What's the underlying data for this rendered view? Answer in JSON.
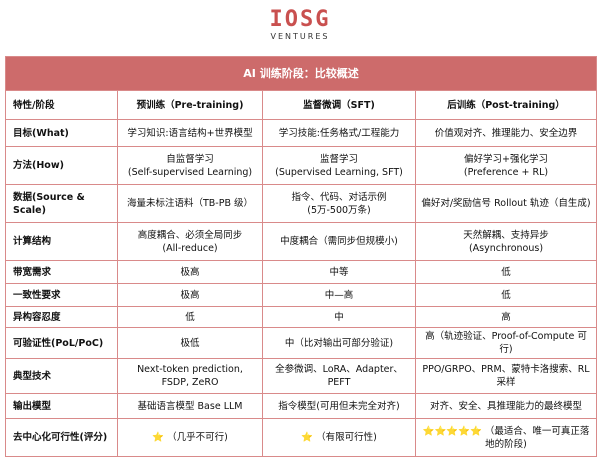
{
  "logo": {
    "mark": "IOSG",
    "sub": "VENTURES"
  },
  "table": {
    "title": "AI 训练阶段：比较概述",
    "headers": [
      "特性/阶段",
      "预训练（Pre-training)",
      "监督微调（SFT)",
      "后训练（Post-training）"
    ],
    "rows": [
      {
        "label": "目标(What)",
        "cells": [
          "学习知识:语言结构+世界模型",
          "学习技能:任务格式/工程能力",
          "价值观对齐、推理能力、安全边界"
        ]
      },
      {
        "label": "方法(How)",
        "cells": [
          "自监督学习\n(Self-supervised Learning)",
          "监督学习\n(Supervised Learning, SFT)",
          "偏好学习+强化学习\n(Preference + RL)"
        ]
      },
      {
        "label": "数据(Source & Scale)",
        "cells": [
          "海量未标注语料（TB-PB 级）",
          "指令、代码、对话示例\n(5万-500万条)",
          "偏好对/奖励信号 Rollout 轨迹（自生成)"
        ]
      },
      {
        "label": "计算结构",
        "cells": [
          "高度耦合、必须全局同步\n(All-reduce)",
          "中度耦合（需同步但规模小)",
          "天然解耦、支持异步\n(Asynchronous)"
        ]
      },
      {
        "label": "带宽需求",
        "cells": [
          "极高",
          "中等",
          "低"
        ]
      },
      {
        "label": "一致性要求",
        "cells": [
          "极高",
          "中—高",
          "低"
        ]
      },
      {
        "label": "异构容忍度",
        "cells": [
          "低",
          "中",
          "高"
        ]
      },
      {
        "label": "可验证性(PoL/PoC)",
        "cells": [
          "极低",
          "中（比对输出可部分验证)",
          "高（轨迹验证、Proof-of-Compute 可行)"
        ]
      },
      {
        "label": "典型技术",
        "cells": [
          "Next-token prediction, FSDP, ZeRO",
          "全参微调、LoRA、Adapter、PEFT",
          "PPO/GRPO、PRM、蒙特卡洛搜索、RL 采样"
        ]
      },
      {
        "label": "输出模型",
        "cells": [
          "基础语言模型 Base LLM",
          "指令模型(可用但未完全对齐)",
          "对齐、安全、具推理能力的最终模型"
        ]
      }
    ],
    "rating_row": {
      "label": "去中心化可行性(评分)",
      "cells": [
        {
          "stars": "⭐",
          "text": "（几乎不可行)"
        },
        {
          "stars": "⭐",
          "text": "（有限可行性)"
        },
        {
          "stars": "⭐⭐⭐⭐⭐",
          "text": "（最适合、唯一可真正落地的阶段)"
        }
      ]
    }
  },
  "colors": {
    "header_bg": "#cd6b6b",
    "border": "#d98a8a",
    "logo": "#c9504f"
  }
}
